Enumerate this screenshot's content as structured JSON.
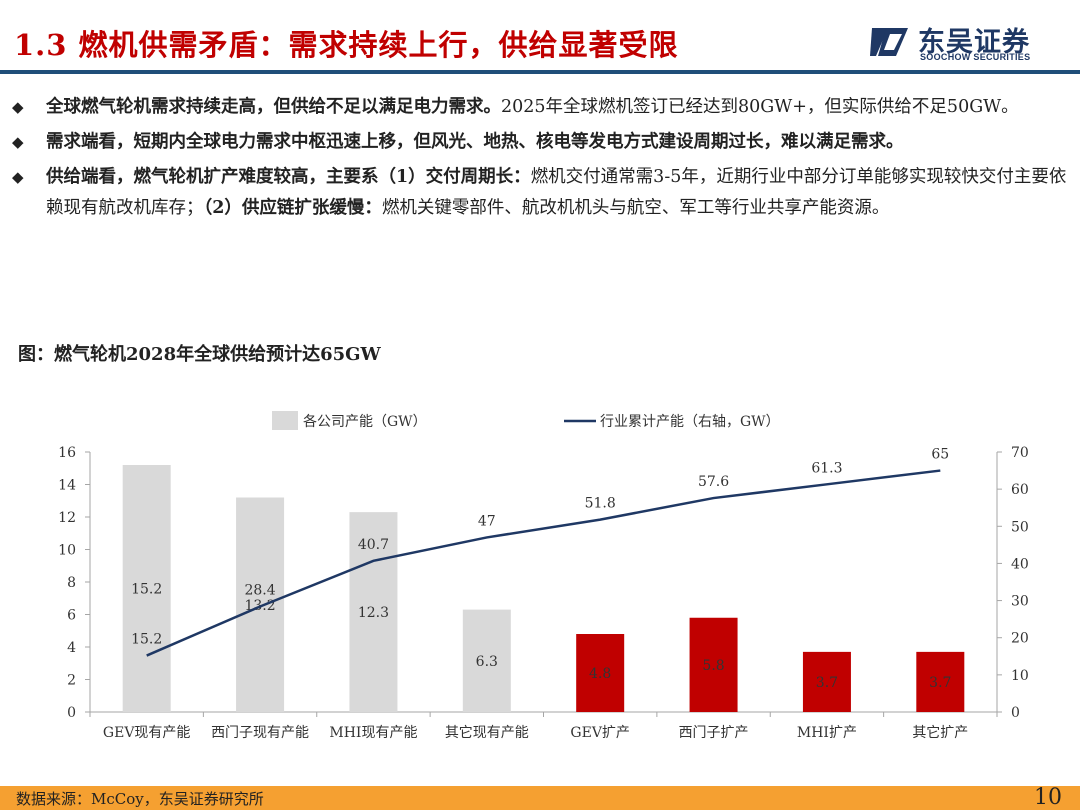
{
  "header": {
    "title": "1.3 燃机供需矛盾：需求持续上行，供给显著受限",
    "logo_cn": "东吴证券",
    "logo_en": "SOOCHOW SECURITIES"
  },
  "bullets": [
    {
      "bold": "全球燃气轮机需求持续走高，但供给不足以满足电力需求。",
      "normal": "2025年全球燃机签订已经达到80GW+，但实际供给不足50GW。"
    },
    {
      "bold": "需求端看，短期内全球电力需求中枢迅速上移，但风光、地热、核电等发电方式建设周期过长，难以满足需求。",
      "normal": ""
    },
    {
      "bold": "供给端看，燃气轮机扩产难度较高，主要系（1）交付周期长：",
      "normal": "燃机交付通常需3-5年，近期行业中部分订单能够实现较快交付主要依赖现有航改机库存；",
      "bold2": "（2）供应链扩张缓慢：",
      "normal2": "燃机关键零部件、航改机机头与航空、军工等行业共享产能资源。"
    }
  ],
  "caption": "图：燃气轮机2028年全球供给预计达65GW",
  "chart_data": {
    "type": "bar",
    "categories": [
      "GEV现有产能",
      "西门子现有产能",
      "MHI现有产能",
      "其它现有产能",
      "GEV扩产",
      "西门子扩产",
      "MHI扩产",
      "其它扩产"
    ],
    "series": [
      {
        "name": "各公司产能（GW）",
        "type": "bar",
        "axis": "left",
        "values": [
          15.2,
          13.2,
          12.3,
          6.3,
          4.8,
          5.8,
          3.7,
          3.7
        ],
        "colors": [
          "#d9d9d9",
          "#d9d9d9",
          "#d9d9d9",
          "#d9d9d9",
          "#c00000",
          "#c00000",
          "#c00000",
          "#c00000"
        ]
      },
      {
        "name": "行业累计产能（右轴，GW）",
        "type": "line",
        "axis": "right",
        "values": [
          15.2,
          28.4,
          40.7,
          47,
          51.8,
          57.6,
          61.3,
          65
        ],
        "color": "#1f3864"
      }
    ],
    "y_left": {
      "min": 0,
      "max": 16,
      "ticks": [
        0,
        2,
        4,
        6,
        8,
        10,
        12,
        14,
        16
      ]
    },
    "y_right": {
      "min": 0,
      "max": 70,
      "ticks": [
        0,
        10,
        20,
        30,
        40,
        50,
        60,
        70
      ]
    },
    "grid": false,
    "legend": "top"
  },
  "footer": {
    "source": "数据来源：McCoy，东吴证券研究所",
    "page": "10"
  }
}
